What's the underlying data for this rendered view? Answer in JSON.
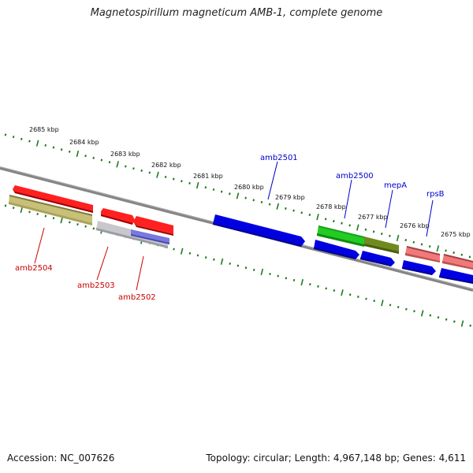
{
  "title": "Magnetospirillum magneticum AMB-1, complete genome",
  "accession": "Accession: NC_007626",
  "topology": "Topology: circular; Length: 4,967,148 bp; Genes: 4,611",
  "colors": {
    "ruler": "#1e7a1e",
    "backbone": "#888888",
    "gene_label_blue": "#0000cc",
    "gene_label_red": "#cc0000",
    "kbp_label": "#111111"
  },
  "kbp_labels": [
    "2685 kbp",
    "2684 kbp",
    "2683 kbp",
    "2682 kbp",
    "2681 kbp",
    "2680 kbp",
    "2679 kbp",
    "2678 kbp",
    "2677 kbp",
    "2676 kbp",
    "2675 kbp"
  ],
  "gene_labels": [
    "amb2501",
    "amb2500",
    "mepA",
    "rpsB",
    "amb2504",
    "amb2503",
    "amb2502"
  ],
  "features": [
    {
      "track": "outer",
      "color": "red"
    },
    {
      "track": "outer",
      "color": "olive-yellow"
    },
    {
      "track": "outer",
      "color": "red"
    },
    {
      "track": "outer",
      "color": "red"
    },
    {
      "track": "outer",
      "color": "grey"
    },
    {
      "track": "outer",
      "color": "slate-blue"
    },
    {
      "track": "inner",
      "color": "blue"
    },
    {
      "track": "outer",
      "color": "green"
    },
    {
      "track": "outer",
      "color": "olive-green"
    },
    {
      "track": "inner",
      "color": "blue"
    },
    {
      "track": "inner",
      "color": "blue"
    },
    {
      "track": "outer",
      "color": "pink"
    },
    {
      "track": "outer",
      "color": "pink"
    },
    {
      "track": "inner",
      "color": "blue"
    },
    {
      "track": "inner",
      "color": "blue"
    }
  ]
}
